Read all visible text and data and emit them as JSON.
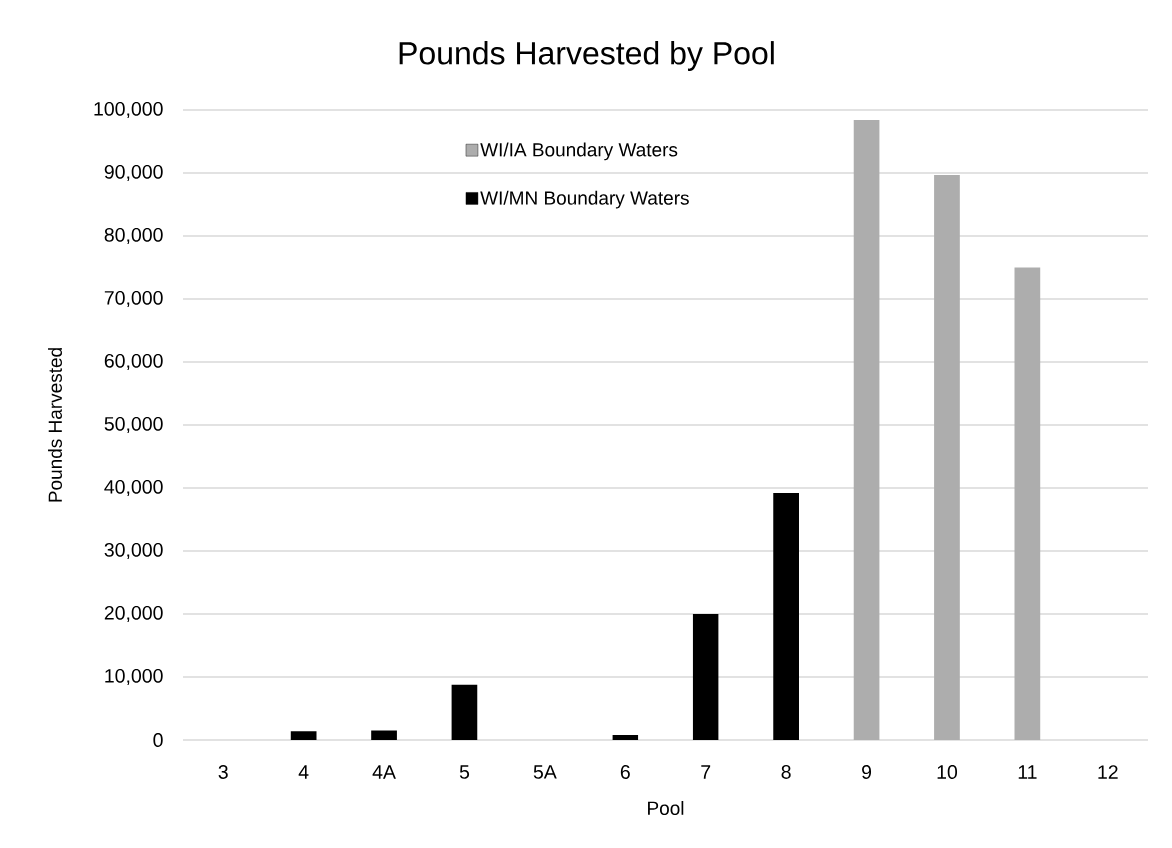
{
  "chart_data": {
    "type": "bar",
    "title": "Pounds Harvested by Pool",
    "xlabel": "Pool",
    "ylabel": "Pounds Harvested",
    "categories": [
      "3",
      "4",
      "4A",
      "5",
      "5A",
      "6",
      "7",
      "8",
      "9",
      "10",
      "11",
      "12"
    ],
    "series": [
      {
        "name": "WI/IA Boundary Waters",
        "color": "#adadad",
        "values": [
          null,
          null,
          null,
          null,
          null,
          null,
          null,
          null,
          98400,
          89700,
          75000,
          null
        ]
      },
      {
        "name": "WI/MN Boundary Waters",
        "color": "#000000",
        "values": [
          null,
          1400,
          1500,
          8800,
          null,
          800,
          20000,
          39200,
          null,
          null,
          null,
          null
        ]
      }
    ],
    "stacked": true,
    "ylim": [
      0,
      100000
    ],
    "yticks": [
      0,
      {
        "value": 10000,
        "label": "10,000"
      },
      {
        "value": 20000,
        "label": "20,000"
      },
      {
        "value": 30000,
        "label": "30,000"
      },
      {
        "value": 40000,
        "label": "40,000"
      },
      {
        "value": 50000,
        "label": "50,000"
      },
      {
        "value": 60000,
        "label": "60,000"
      },
      {
        "value": 70000,
        "label": "70,000"
      },
      {
        "value": 80000,
        "label": "80,000"
      },
      {
        "value": 90000,
        "label": "90,000"
      },
      {
        "value": 100000,
        "label": "100,000"
      }
    ],
    "grid": "y",
    "legend": "top"
  }
}
